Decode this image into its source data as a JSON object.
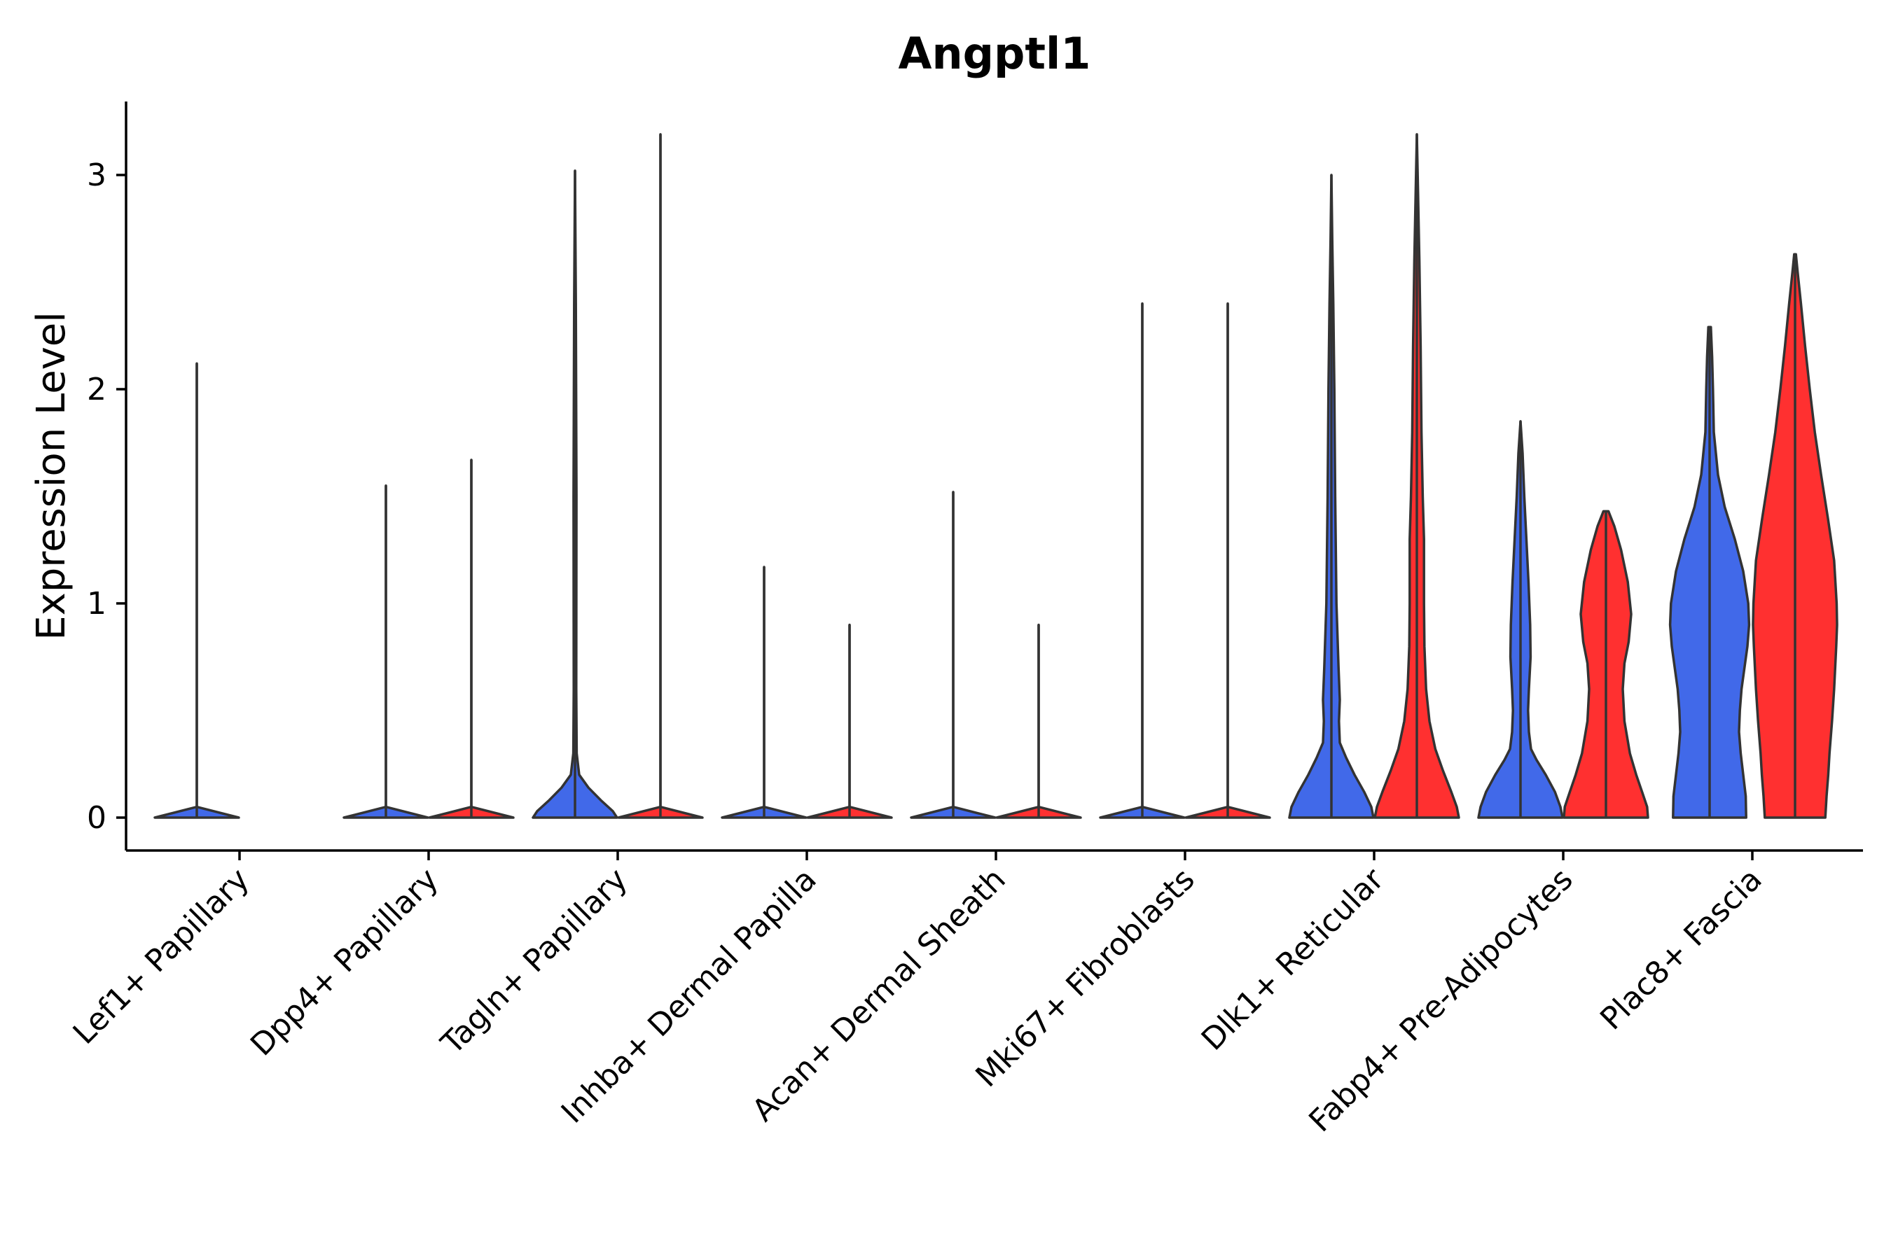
{
  "chart_data": {
    "type": "violin",
    "title": "Angptl1",
    "xlabel": "",
    "ylabel": "Expression Level",
    "ylim": [
      -0.16,
      3.36
    ],
    "yticks": [
      0,
      1,
      2,
      3
    ],
    "grid": false,
    "legend": "none",
    "categories": [
      "Lef1+ Papillary",
      "Dpp4+ Papillary",
      "Tagln+ Papillary",
      "Inhba+ Dermal Papilla",
      "Acan+ Dermal Sheath",
      "Mki67+ Fibroblasts",
      "Dlk1+ Reticular",
      "Fabp4+ Pre-Adipocytes",
      "Plac8+ Fascia"
    ],
    "groups": [
      {
        "name": "group-1",
        "color": "#4169E9"
      },
      {
        "name": "group-2",
        "color": "#FF3030"
      }
    ],
    "violins": [
      {
        "category": "Lef1+ Papillary",
        "group": "group-1",
        "min": 0,
        "max": 2.12,
        "shape": [
          [
            0,
            1.0
          ],
          [
            0.05,
            0.0
          ]
        ]
      },
      {
        "category": "Dpp4+ Papillary",
        "group": "group-1",
        "min": 0,
        "max": 1.55,
        "shape": [
          [
            0,
            1.0
          ],
          [
            0.05,
            0.0
          ]
        ]
      },
      {
        "category": "Dpp4+ Papillary",
        "group": "group-2",
        "min": 0,
        "max": 1.67,
        "shape": [
          [
            0,
            1.0
          ],
          [
            0.05,
            0.0
          ]
        ]
      },
      {
        "category": "Tagln+ Papillary",
        "group": "group-1",
        "min": 0,
        "max": 3.02,
        "shape": [
          [
            0,
            1.0
          ],
          [
            0.03,
            0.9
          ],
          [
            0.08,
            0.62
          ],
          [
            0.14,
            0.32
          ],
          [
            0.2,
            0.1
          ],
          [
            0.3,
            0.04
          ],
          [
            0.6,
            0.03
          ],
          [
            1.5,
            0.035
          ],
          [
            2.4,
            0.02
          ],
          [
            3.02,
            0.0
          ]
        ]
      },
      {
        "category": "Tagln+ Papillary",
        "group": "group-2",
        "min": 0,
        "max": 3.19,
        "shape": [
          [
            0,
            1.0
          ],
          [
            0.05,
            0.0
          ]
        ]
      },
      {
        "category": "Inhba+ Dermal Papilla",
        "group": "group-1",
        "min": 0,
        "max": 1.17,
        "shape": [
          [
            0,
            1.0
          ],
          [
            0.05,
            0.0
          ]
        ]
      },
      {
        "category": "Inhba+ Dermal Papilla",
        "group": "group-2",
        "min": 0,
        "max": 0.9,
        "shape": [
          [
            0,
            1.0
          ],
          [
            0.05,
            0.0
          ]
        ]
      },
      {
        "category": "Acan+ Dermal Sheath",
        "group": "group-1",
        "min": 0,
        "max": 1.52,
        "shape": [
          [
            0,
            1.0
          ],
          [
            0.05,
            0.0
          ]
        ]
      },
      {
        "category": "Acan+ Dermal Sheath",
        "group": "group-2",
        "min": 0,
        "max": 0.9,
        "shape": [
          [
            0,
            1.0
          ],
          [
            0.05,
            0.0
          ]
        ]
      },
      {
        "category": "Mki67+ Fibroblasts",
        "group": "group-1",
        "min": 0,
        "max": 2.4,
        "shape": [
          [
            0,
            1.0
          ],
          [
            0.05,
            0.0
          ]
        ]
      },
      {
        "category": "Mki67+ Fibroblasts",
        "group": "group-2",
        "min": 0,
        "max": 2.4,
        "shape": [
          [
            0,
            1.0
          ],
          [
            0.05,
            0.0
          ]
        ]
      },
      {
        "category": "Dlk1+ Reticular",
        "group": "group-1",
        "min": 0,
        "max": 3.0,
        "shape": [
          [
            0,
            1.0
          ],
          [
            0.05,
            0.95
          ],
          [
            0.12,
            0.78
          ],
          [
            0.2,
            0.55
          ],
          [
            0.28,
            0.35
          ],
          [
            0.35,
            0.2
          ],
          [
            0.45,
            0.18
          ],
          [
            0.55,
            0.2
          ],
          [
            0.7,
            0.17
          ],
          [
            1.0,
            0.12
          ],
          [
            1.5,
            0.09
          ],
          [
            2.0,
            0.07
          ],
          [
            2.4,
            0.045
          ],
          [
            2.7,
            0.02
          ],
          [
            3.0,
            0.0
          ]
        ]
      },
      {
        "category": "Dlk1+ Reticular",
        "group": "group-2",
        "min": 0,
        "max": 3.19,
        "shape": [
          [
            0,
            1.0
          ],
          [
            0.05,
            0.95
          ],
          [
            0.12,
            0.82
          ],
          [
            0.22,
            0.62
          ],
          [
            0.32,
            0.44
          ],
          [
            0.45,
            0.3
          ],
          [
            0.6,
            0.22
          ],
          [
            0.8,
            0.18
          ],
          [
            1.0,
            0.17
          ],
          [
            1.3,
            0.17
          ],
          [
            1.5,
            0.14
          ],
          [
            1.8,
            0.11
          ],
          [
            2.2,
            0.09
          ],
          [
            2.6,
            0.06
          ],
          [
            2.9,
            0.03
          ],
          [
            3.19,
            0.0
          ]
        ]
      },
      {
        "category": "Fabp4+ Pre-Adipocytes",
        "group": "group-1",
        "min": 0,
        "max": 1.85,
        "shape": [
          [
            0,
            1.0
          ],
          [
            0.05,
            0.95
          ],
          [
            0.12,
            0.82
          ],
          [
            0.2,
            0.6
          ],
          [
            0.27,
            0.38
          ],
          [
            0.32,
            0.25
          ],
          [
            0.4,
            0.2
          ],
          [
            0.5,
            0.18
          ],
          [
            0.6,
            0.2
          ],
          [
            0.75,
            0.24
          ],
          [
            0.9,
            0.23
          ],
          [
            1.1,
            0.19
          ],
          [
            1.3,
            0.14
          ],
          [
            1.5,
            0.09
          ],
          [
            1.7,
            0.05
          ],
          [
            1.85,
            0.0
          ]
        ]
      },
      {
        "category": "Fabp4+ Pre-Adipocytes",
        "group": "group-2",
        "min": 0,
        "max": 1.43,
        "shape": [
          [
            0,
            1.0
          ],
          [
            0.05,
            0.98
          ],
          [
            0.12,
            0.86
          ],
          [
            0.2,
            0.72
          ],
          [
            0.3,
            0.57
          ],
          [
            0.45,
            0.44
          ],
          [
            0.6,
            0.4
          ],
          [
            0.72,
            0.44
          ],
          [
            0.82,
            0.54
          ],
          [
            0.95,
            0.6
          ],
          [
            1.1,
            0.52
          ],
          [
            1.25,
            0.36
          ],
          [
            1.36,
            0.2
          ],
          [
            1.43,
            0.06
          ]
        ]
      },
      {
        "category": "Plac8+ Fascia",
        "group": "group-1",
        "min": 0,
        "max": 2.29,
        "shape": [
          [
            0,
            0.87
          ],
          [
            0.1,
            0.86
          ],
          [
            0.2,
            0.8
          ],
          [
            0.3,
            0.74
          ],
          [
            0.4,
            0.7
          ],
          [
            0.5,
            0.72
          ],
          [
            0.6,
            0.76
          ],
          [
            0.8,
            0.9
          ],
          [
            0.9,
            0.94
          ],
          [
            1.0,
            0.92
          ],
          [
            1.15,
            0.8
          ],
          [
            1.3,
            0.6
          ],
          [
            1.45,
            0.36
          ],
          [
            1.6,
            0.2
          ],
          [
            1.8,
            0.1
          ],
          [
            2.0,
            0.08
          ],
          [
            2.15,
            0.06
          ],
          [
            2.29,
            0.03
          ]
        ]
      },
      {
        "category": "Plac8+ Fascia",
        "group": "group-2",
        "min": 0,
        "max": 2.63,
        "shape": [
          [
            0,
            0.72
          ],
          [
            0.1,
            0.75
          ],
          [
            0.2,
            0.79
          ],
          [
            0.3,
            0.82
          ],
          [
            0.45,
            0.88
          ],
          [
            0.6,
            0.93
          ],
          [
            0.8,
            0.98
          ],
          [
            0.9,
            1.0
          ],
          [
            1.0,
            0.99
          ],
          [
            1.2,
            0.93
          ],
          [
            1.4,
            0.78
          ],
          [
            1.6,
            0.62
          ],
          [
            1.8,
            0.47
          ],
          [
            2.0,
            0.35
          ],
          [
            2.2,
            0.24
          ],
          [
            2.4,
            0.14
          ],
          [
            2.55,
            0.06
          ],
          [
            2.63,
            0.02
          ]
        ]
      }
    ]
  },
  "colors": {
    "group-1": "#4169E9",
    "group-2": "#FF3030",
    "outline": "#333333"
  }
}
